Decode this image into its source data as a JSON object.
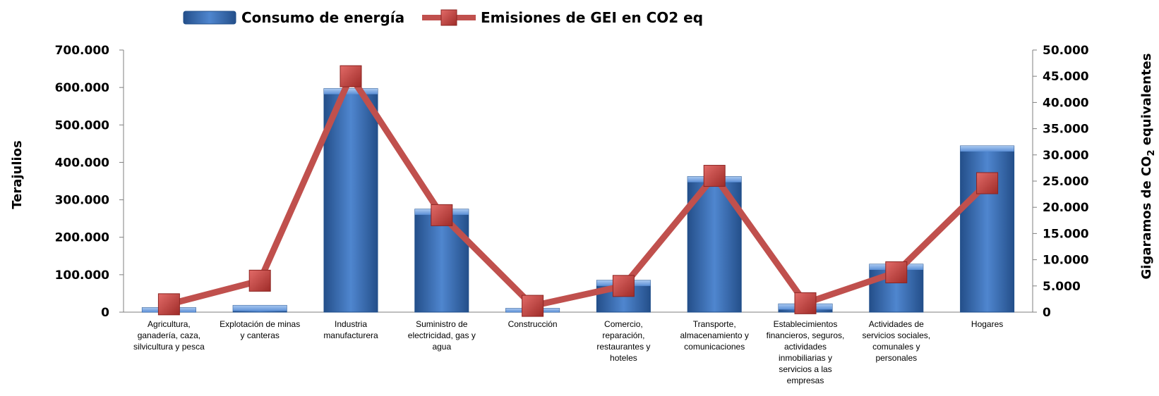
{
  "chart_data": {
    "type": "bar",
    "legend_placement": "top",
    "grid": false,
    "categories": [
      "Agricultura, ganadería, caza, silvicultura y pesca",
      "Explotación de minas y canteras",
      "Industria manufacturera",
      "Suministro de electricidad, gas y agua",
      "Construcción",
      "Comercio, reparación, restaurantes y hoteles",
      "Transporte, almacenamiento y comunicaciones",
      "Establecimientos financieros, seguros, actividades inmobiliarias y servicios a las empresas",
      "Actividades de servicios sociales, comunales y personales",
      "Hogares"
    ],
    "category_lines": [
      [
        "Agricultura,",
        "ganadería, caza,",
        "silvicultura y pesca"
      ],
      [
        "Explotación de minas",
        "y canteras"
      ],
      [
        "Industria",
        "manufacturera"
      ],
      [
        "Suministro de",
        "electricidad, gas y",
        "agua"
      ],
      [
        "Construcción"
      ],
      [
        "Comercio,",
        "reparación,",
        "restaurantes y",
        "hoteles"
      ],
      [
        "Transporte,",
        "almacenamiento y",
        "comunicaciones"
      ],
      [
        "Establecimientos",
        "financieros, seguros,",
        "actividades",
        "inmobiliarias y",
        "servicios a las",
        "empresas"
      ],
      [
        "Actividades de",
        "servicios sociales,",
        "comunales y",
        "personales"
      ],
      [
        "Hogares"
      ]
    ],
    "series": [
      {
        "name": "Consumo de energía",
        "type": "bar",
        "axis": "left",
        "color": "#4f81bd",
        "values": [
          12000,
          18000,
          597000,
          275000,
          10000,
          85000,
          362000,
          22000,
          128000,
          444000
        ]
      },
      {
        "name": "Emisiones de GEI en CO2 eq",
        "type": "line",
        "axis": "right",
        "color": "#c0504d",
        "values": [
          1500,
          6000,
          45000,
          18500,
          1200,
          5000,
          26000,
          1700,
          7600,
          24600
        ]
      }
    ],
    "y_left": {
      "label": "Terajulios",
      "range": [
        0,
        700000
      ],
      "ticks": [
        "0",
        "100.000",
        "200.000",
        "300.000",
        "400.000",
        "500.000",
        "600.000",
        "700.000"
      ]
    },
    "y_right": {
      "label_main": "Gigaramos de CO",
      "label_sub": "2",
      "label_tail": " equivalentes",
      "range": [
        0,
        50000
      ],
      "ticks": [
        "0",
        "5.000",
        "10.000",
        "15.000",
        "20.000",
        "25.000",
        "30.000",
        "35.000",
        "40.000",
        "45.000",
        "50.000"
      ]
    }
  }
}
